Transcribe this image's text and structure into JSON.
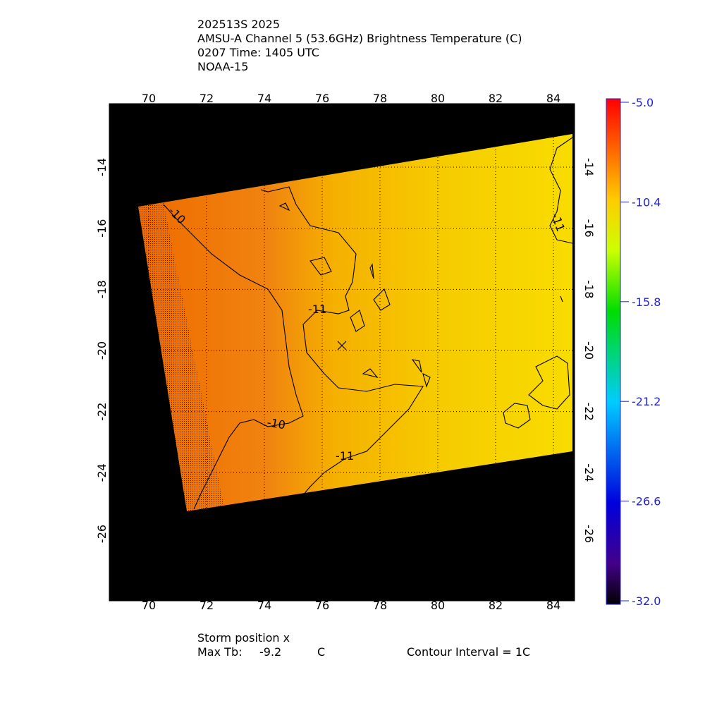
{
  "header": {
    "lines": [
      "202513S 2025",
      "AMSU-A Channel 5 (53.6GHz) Brightness Temperature (C)",
      "0207 Time: 1405 UTC",
      "NOAA-15"
    ]
  },
  "map": {
    "lon_ticks": [
      "70",
      "72",
      "74",
      "76",
      "78",
      "80",
      "82",
      "84"
    ],
    "lat_ticks": [
      "-14",
      "-16",
      "-18",
      "-20",
      "-22",
      "-24",
      "-26"
    ],
    "contour_labels": [
      "-10",
      "-11",
      "-10",
      "-11",
      "-11"
    ]
  },
  "colorbar": {
    "ticks": [
      "-5.0",
      "-10.4",
      "-15.8",
      "-21.2",
      "-26.6",
      "-32.0"
    ]
  },
  "footer": {
    "storm": "Storm position x",
    "max_label": "Max Tb:",
    "max_value": "-9.2",
    "max_unit": "C",
    "interval": "Contour Interval = 1C"
  }
}
